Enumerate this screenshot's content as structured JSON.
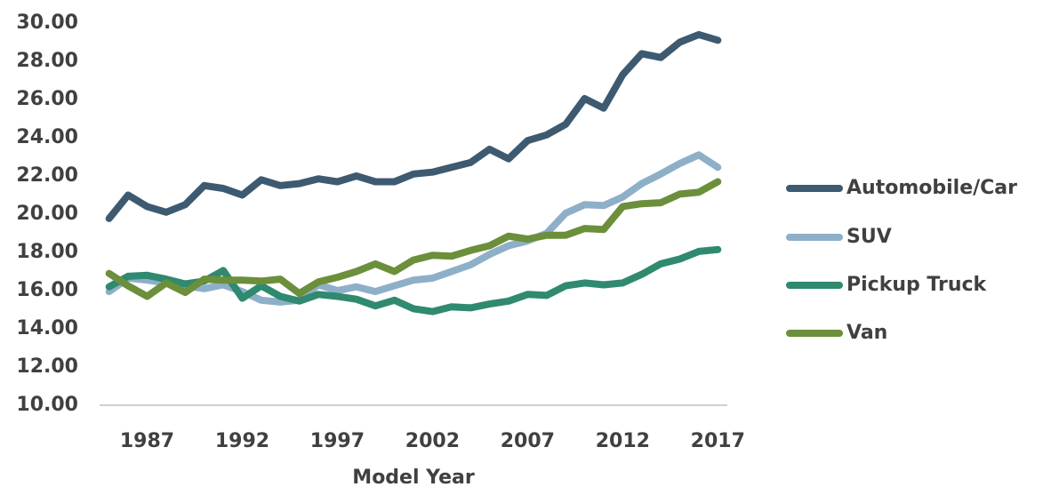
{
  "chart_data": {
    "type": "line",
    "x_label": "Model Year",
    "x": [
      1985,
      1986,
      1987,
      1988,
      1989,
      1990,
      1991,
      1992,
      1993,
      1994,
      1995,
      1996,
      1997,
      1998,
      1999,
      2000,
      2001,
      2002,
      2003,
      2004,
      2005,
      2006,
      2007,
      2008,
      2009,
      2010,
      2011,
      2012,
      2013,
      2014,
      2015,
      2016,
      2017
    ],
    "series": [
      {
        "name": "Automobile/Car",
        "color": "#3d5a71",
        "values": [
          19.77,
          21.0,
          20.4,
          20.1,
          20.5,
          21.5,
          21.35,
          21.0,
          21.8,
          21.5,
          21.6,
          21.85,
          21.7,
          22.0,
          21.7,
          21.7,
          22.1,
          22.2,
          22.45,
          22.7,
          23.4,
          22.9,
          23.85,
          24.15,
          24.7,
          26.05,
          25.55,
          27.3,
          28.4,
          28.2,
          29.0,
          29.4,
          29.1
        ]
      },
      {
        "name": "SUV",
        "color": "#8eafc8",
        "values": [
          15.95,
          16.65,
          16.55,
          16.4,
          16.25,
          16.1,
          16.3,
          15.95,
          15.5,
          15.4,
          15.5,
          16.3,
          16.0,
          16.2,
          15.95,
          16.25,
          16.55,
          16.65,
          17.0,
          17.35,
          17.9,
          18.35,
          18.6,
          19.0,
          20.05,
          20.5,
          20.45,
          20.9,
          21.6,
          22.1,
          22.65,
          23.1,
          22.45
        ]
      },
      {
        "name": "Pickup Truck",
        "color": "#2f8a6f",
        "values": [
          16.2,
          16.75,
          16.8,
          16.6,
          16.35,
          16.5,
          17.05,
          15.6,
          16.25,
          15.7,
          15.45,
          15.8,
          15.7,
          15.55,
          15.2,
          15.5,
          15.05,
          14.9,
          15.15,
          15.1,
          15.3,
          15.45,
          15.8,
          15.75,
          16.25,
          16.4,
          16.3,
          16.4,
          16.85,
          17.4,
          17.65,
          18.05,
          18.15
        ]
      },
      {
        "name": "Van",
        "color": "#6b8f3b",
        "values": [
          16.9,
          16.25,
          15.7,
          16.4,
          15.9,
          16.6,
          16.55,
          16.55,
          16.5,
          16.6,
          15.85,
          16.45,
          16.7,
          17.0,
          17.4,
          17.0,
          17.6,
          17.85,
          17.8,
          18.1,
          18.35,
          18.85,
          18.7,
          18.9,
          18.9,
          19.25,
          19.2,
          20.4,
          20.55,
          20.6,
          21.05,
          21.15,
          21.7
        ]
      }
    ],
    "xlim": [
      1984.5,
      2017.5
    ],
    "xticks": [
      1987,
      1992,
      1997,
      2002,
      2007,
      2012,
      2017
    ],
    "ylim": [
      10,
      30
    ],
    "yticks": [
      {
        "value": 10,
        "label": "10.00"
      },
      {
        "value": 12,
        "label": "12.00"
      },
      {
        "value": 14,
        "label": "14.00"
      },
      {
        "value": 16,
        "label": "16.00"
      },
      {
        "value": 18,
        "label": "18.00"
      },
      {
        "value": 20,
        "label": "20.00"
      },
      {
        "value": 22,
        "label": "22.00"
      },
      {
        "value": 24,
        "label": "24.00"
      },
      {
        "value": 26,
        "label": "26.00"
      },
      {
        "value": 28,
        "label": "28.00"
      },
      {
        "value": 30,
        "label": "30.00"
      }
    ],
    "legend": "right"
  }
}
